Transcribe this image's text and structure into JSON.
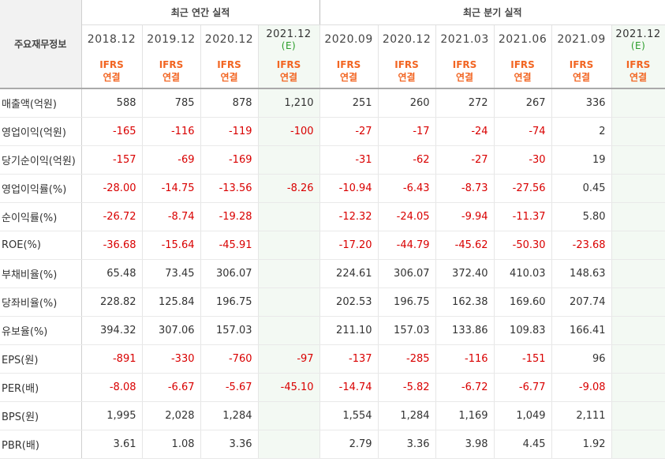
{
  "header": {
    "row_label": "주요재무정보",
    "annual_title": "최근 연간 실적",
    "quarterly_title": "최근 분기 실적",
    "ifrs_top": "IFRS",
    "ifrs_bottom": "연결",
    "estimate_mark": "(E)"
  },
  "columns": [
    {
      "date": "2018.12",
      "est": false
    },
    {
      "date": "2019.12",
      "est": false
    },
    {
      "date": "2020.12",
      "est": false
    },
    {
      "date": "2021.12",
      "est": true
    },
    {
      "date": "2020.09",
      "est": false
    },
    {
      "date": "2020.12",
      "est": false
    },
    {
      "date": "2021.03",
      "est": false
    },
    {
      "date": "2021.06",
      "est": false
    },
    {
      "date": "2021.09",
      "est": false
    },
    {
      "date": "2021.12",
      "est": true
    }
  ],
  "rows": [
    {
      "label": "매출액(억원)",
      "values": [
        "588",
        "785",
        "878",
        "1,210",
        "251",
        "260",
        "272",
        "267",
        "336",
        ""
      ]
    },
    {
      "label": "영업이익(억원)",
      "values": [
        "-165",
        "-116",
        "-119",
        "-100",
        "-27",
        "-17",
        "-24",
        "-74",
        "2",
        ""
      ]
    },
    {
      "label": "당기순이익(억원)",
      "values": [
        "-157",
        "-69",
        "-169",
        "",
        "-31",
        "-62",
        "-27",
        "-30",
        "19",
        ""
      ]
    },
    {
      "label": "영업이익률(%)",
      "values": [
        "-28.00",
        "-14.75",
        "-13.56",
        "-8.26",
        "-10.94",
        "-6.43",
        "-8.73",
        "-27.56",
        "0.45",
        ""
      ]
    },
    {
      "label": "순이익률(%)",
      "values": [
        "-26.72",
        "-8.74",
        "-19.28",
        "",
        "-12.32",
        "-24.05",
        "-9.94",
        "-11.37",
        "5.80",
        ""
      ]
    },
    {
      "label": "ROE(%)",
      "values": [
        "-36.68",
        "-15.64",
        "-45.91",
        "",
        "-17.20",
        "-44.79",
        "-45.62",
        "-50.30",
        "-23.68",
        ""
      ]
    },
    {
      "label": "부채비율(%)",
      "values": [
        "65.48",
        "73.45",
        "306.07",
        "",
        "224.61",
        "306.07",
        "372.40",
        "410.03",
        "148.63",
        ""
      ]
    },
    {
      "label": "당좌비율(%)",
      "values": [
        "228.82",
        "125.84",
        "196.75",
        "",
        "202.53",
        "196.75",
        "162.38",
        "169.60",
        "207.74",
        ""
      ]
    },
    {
      "label": "유보율(%)",
      "values": [
        "394.32",
        "307.06",
        "157.03",
        "",
        "211.10",
        "157.03",
        "133.86",
        "109.83",
        "166.41",
        ""
      ]
    },
    {
      "label": "EPS(원)",
      "values": [
        "-891",
        "-330",
        "-760",
        "-97",
        "-137",
        "-285",
        "-116",
        "-151",
        "96",
        ""
      ]
    },
    {
      "label": "PER(배)",
      "values": [
        "-8.08",
        "-6.67",
        "-5.67",
        "-45.10",
        "-14.74",
        "-5.82",
        "-6.72",
        "-6.77",
        "-9.08",
        ""
      ]
    },
    {
      "label": "BPS(원)",
      "values": [
        "1,995",
        "2,028",
        "1,284",
        "",
        "1,554",
        "1,284",
        "1,169",
        "1,049",
        "2,111",
        ""
      ]
    },
    {
      "label": "PBR(배)",
      "values": [
        "3.61",
        "1.08",
        "3.36",
        "",
        "2.79",
        "3.36",
        "3.98",
        "4.45",
        "1.92",
        ""
      ]
    }
  ]
}
